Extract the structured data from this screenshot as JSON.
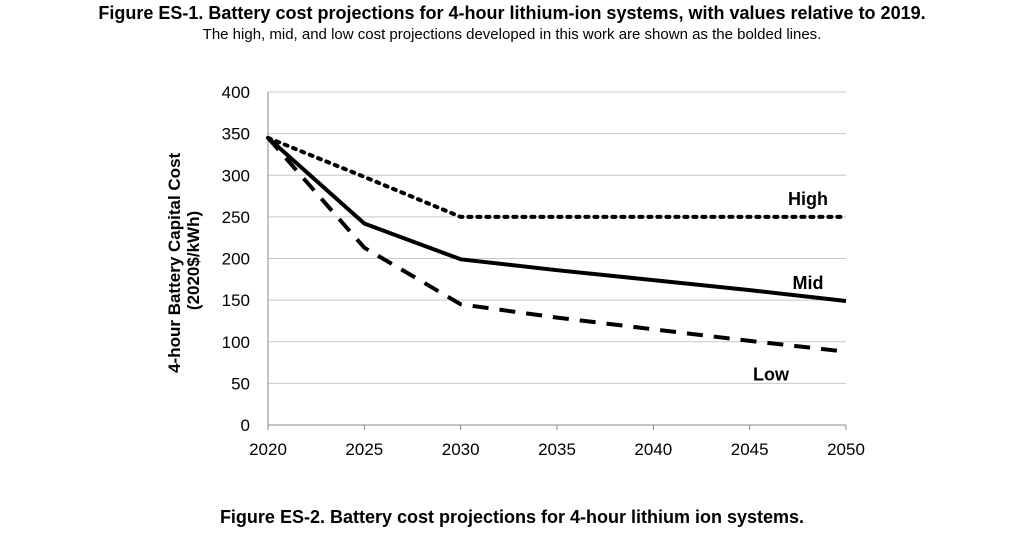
{
  "figure_title": "Figure ES-1. Battery cost projections for 4-hour lithium-ion systems, with values relative to 2019.",
  "figure_subtitle": "The high, mid, and low cost projections developed in this work are shown as the bolded lines.",
  "figure_caption": "Figure ES-2. Battery cost projections for 4-hour lithium ion systems.",
  "chart_data": {
    "type": "line",
    "title": "",
    "xlabel": "",
    "ylabel_lines": [
      "4-hour Battery Capital Cost",
      "(2020$/kWh)"
    ],
    "x": [
      2020,
      2025,
      2030,
      2035,
      2040,
      2045,
      2050
    ],
    "xlim": [
      2020,
      2050
    ],
    "ylim": [
      0,
      400
    ],
    "x_ticks": [
      2020,
      2025,
      2030,
      2035,
      2040,
      2045,
      2050
    ],
    "y_ticks": [
      0,
      50,
      100,
      150,
      200,
      250,
      300,
      350,
      400
    ],
    "grid": "horizontal",
    "legend": "none (direct labels)",
    "series": [
      {
        "name": "High",
        "style": "dotted",
        "color": "#000000",
        "points": [
          [
            2020,
            345
          ],
          [
            2025,
            298
          ],
          [
            2030,
            250
          ],
          [
            2035,
            250
          ],
          [
            2040,
            250
          ],
          [
            2045,
            250
          ],
          [
            2050,
            250
          ]
        ]
      },
      {
        "name": "Mid",
        "style": "solid",
        "color": "#000000",
        "points": [
          [
            2020,
            345
          ],
          [
            2025,
            242
          ],
          [
            2030,
            199
          ],
          [
            2035,
            186
          ],
          [
            2040,
            174
          ],
          [
            2045,
            162
          ],
          [
            2050,
            149
          ]
        ]
      },
      {
        "name": "Low",
        "style": "dashed",
        "color": "#000000",
        "points": [
          [
            2020,
            345
          ],
          [
            2025,
            213
          ],
          [
            2030,
            145
          ],
          [
            2035,
            129
          ],
          [
            2040,
            115
          ],
          [
            2045,
            101
          ],
          [
            2050,
            88
          ]
        ]
      }
    ]
  }
}
